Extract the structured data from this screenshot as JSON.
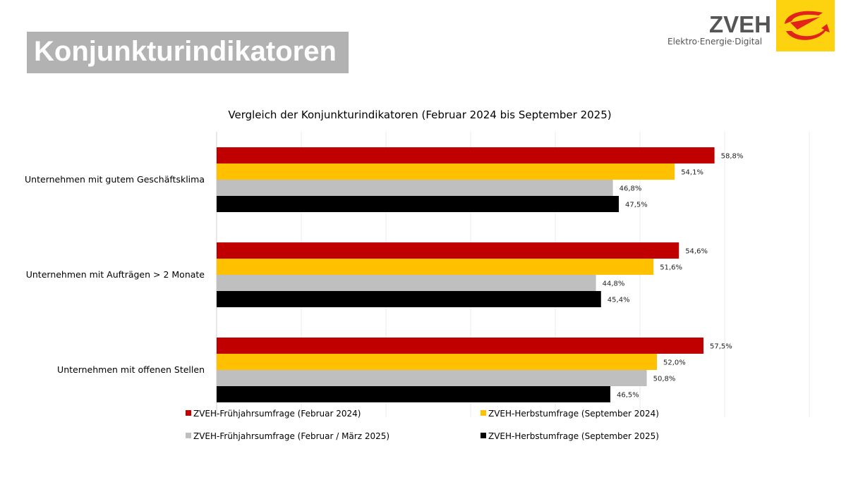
{
  "header": {
    "title": "Konjunkturindikatoren",
    "logo_name": "ZVEH",
    "logo_tagline": "Elektro·Energie·Digital",
    "logo_colors": {
      "box": "#fdd20f",
      "mark": "#e2231a",
      "text": "#555555"
    }
  },
  "chart_data": {
    "type": "bar",
    "orientation": "horizontal",
    "title": "Vergleich der Konjunkturindikatoren (Februar 2024 bis September 2025)",
    "xlabel": "",
    "ylabel": "",
    "xlim": [
      0,
      70
    ],
    "grid": true,
    "legend_position": "bottom",
    "categories": [
      "Unternehmen mit gutem Geschäftsklima",
      "Unternehmen mit Aufträgen > 2 Monate",
      "Unternehmen mit offenen Stellen"
    ],
    "series": [
      {
        "name": "ZVEH-Frühjahrsumfrage (Februar 2024)",
        "color": "#c00000",
        "values": [
          58.8,
          54.6,
          57.5
        ],
        "labels": [
          "58,8%",
          "54,6%",
          "57,5%"
        ]
      },
      {
        "name": "ZVEH-Herbstumfrage (September 2024)",
        "color": "#ffc000",
        "values": [
          54.1,
          51.6,
          52.0
        ],
        "labels": [
          "54,1%",
          "51,6%",
          "52,0%"
        ]
      },
      {
        "name": "ZVEH-Frühjahrsumfrage (Februar / März 2025)",
        "color": "#bfbfbf",
        "values": [
          46.8,
          44.8,
          50.8
        ],
        "labels": [
          "46,8%",
          "44,8%",
          "50,8%"
        ]
      },
      {
        "name": "ZVEH-Herbstumfrage (September 2025)",
        "color": "#000000",
        "values": [
          47.5,
          45.4,
          46.5
        ],
        "labels": [
          "47,5%",
          "45,4%",
          "46,5%"
        ]
      }
    ]
  }
}
